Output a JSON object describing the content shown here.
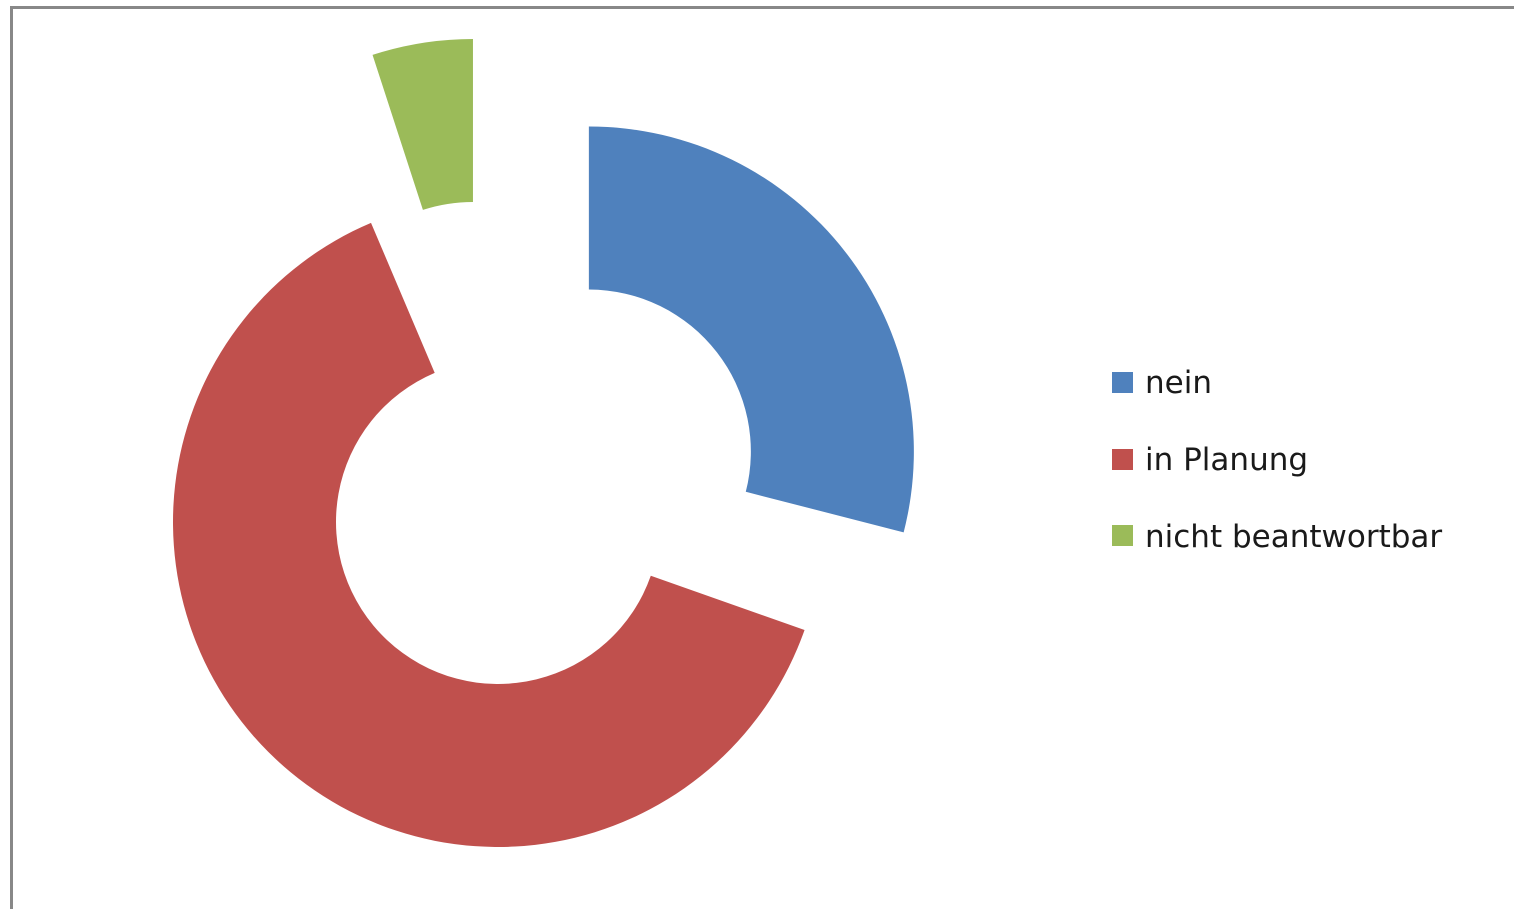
{
  "chart_data": {
    "type": "pie",
    "donut": true,
    "exploded": true,
    "title": "",
    "series": [
      {
        "values": [
          29,
          66,
          5
        ]
      }
    ],
    "categories": [
      "nein",
      "in Planung",
      "nicht beantwortbar"
    ],
    "colors": [
      "#4F81BD",
      "#C0504D",
      "#9BBB59"
    ],
    "legend_position": "right"
  },
  "legend": {
    "items": [
      {
        "label": "nein",
        "color": "#4F81BD"
      },
      {
        "label": "in Planung",
        "color": "#C0504D"
      },
      {
        "label": "nicht beantwortbar",
        "color": "#9BBB59"
      }
    ]
  }
}
